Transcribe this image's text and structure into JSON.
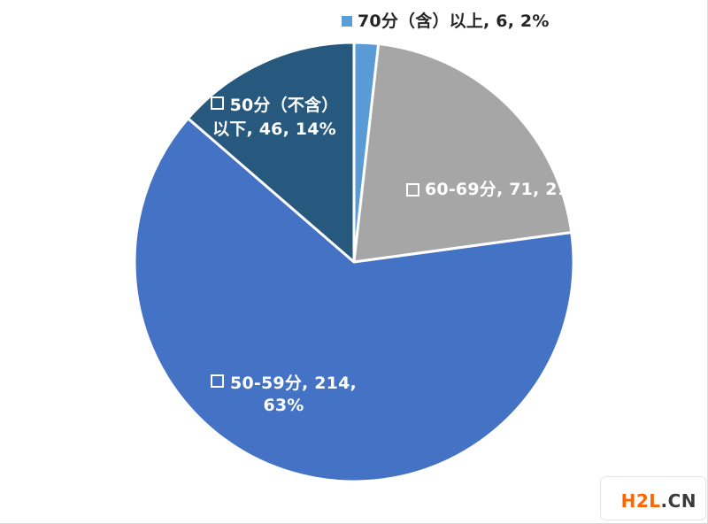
{
  "page": {
    "background": "#ffffff"
  },
  "chart_data": {
    "type": "pie",
    "title": "",
    "total": 337,
    "start_angle_deg": 0,
    "direction": "clockwise",
    "legend_position": "none",
    "label_format": "category, value, percent",
    "center": [
      400,
      296
    ],
    "radius": 248,
    "slice_border_color": "#ffffff",
    "slice_border_width": 3,
    "series": [
      {
        "name": "70分（含）以上",
        "value": 6,
        "percent": "2%",
        "color": "#5B9BD5"
      },
      {
        "name": "60-69分",
        "value": 71,
        "percent": "21%",
        "color": "#A6A6A6"
      },
      {
        "name": "50-59分",
        "value": 214,
        "percent": "63%",
        "color": "#4472C4"
      },
      {
        "name": "50分（不含）以下",
        "value": 46,
        "percent": "14%",
        "color": "#27597F"
      }
    ]
  },
  "labels": {
    "seg70plus": {
      "text": "70分（含）以上, 6, 2%"
    },
    "seg6069": {
      "text": "60-69分, 71, 21%"
    },
    "seg5059": {
      "line1": "50-59分, 214,",
      "line2": "63%"
    },
    "seg50below": {
      "line1": "50分（不含）",
      "line2": "以下, 46, 14%"
    }
  },
  "watermark": {
    "brand": "H2L",
    "suffix": ".CN",
    "brand_color": "#FF6600",
    "suffix_color": "#3B3B3B"
  }
}
